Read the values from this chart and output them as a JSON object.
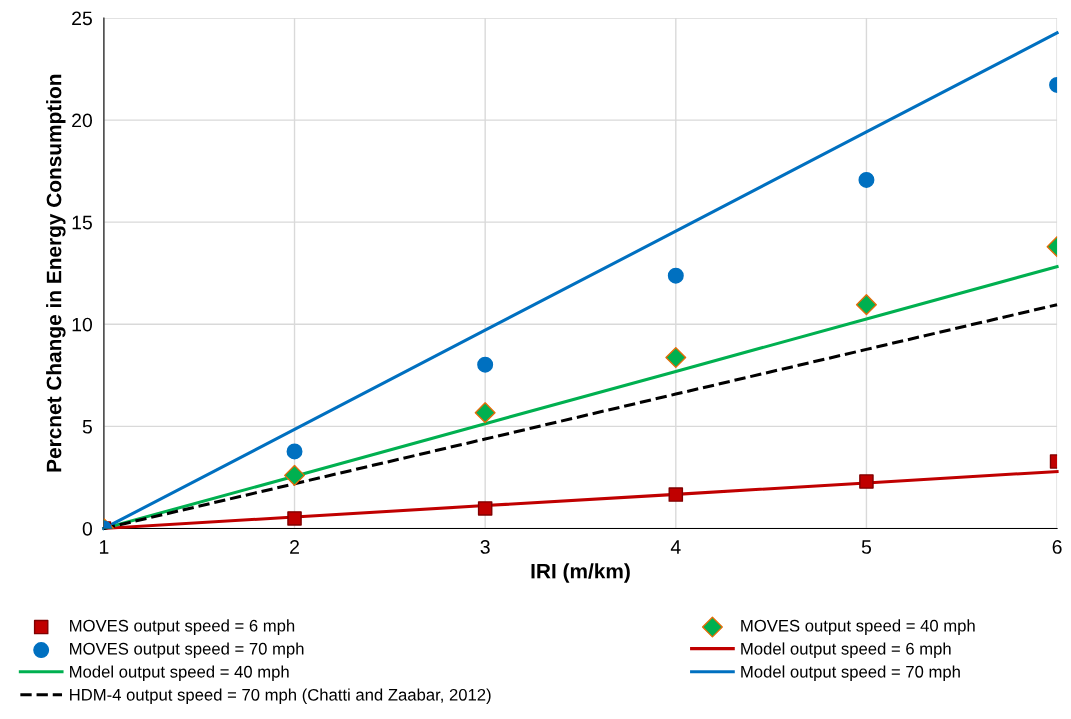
{
  "chart_data": {
    "type": "scatter",
    "xlabel": "IRI (m/km)",
    "ylabel": "Percnet Change in Energy Consumption",
    "x": [
      1,
      2,
      3,
      4,
      5,
      6
    ],
    "xlim": [
      1,
      6
    ],
    "xticks": [
      1,
      2,
      3,
      4,
      5,
      6
    ],
    "ylim": [
      0,
      25
    ],
    "yticks": [
      0,
      5,
      10,
      15,
      20,
      25
    ],
    "grid": true,
    "legend": "bottom",
    "series": [
      {
        "name": "MOVES output speed = 6 mph",
        "marker": "square",
        "color": "#c00000",
        "values": [
          0,
          0.49,
          0.98,
          1.66,
          2.3,
          3.28
        ]
      },
      {
        "name": "MOVES output speed = 40 mph",
        "marker": "diamond",
        "color": "#00b050",
        "values": [
          0,
          2.6,
          5.67,
          8.37,
          10.96,
          13.8
        ]
      },
      {
        "name": "MOVES output speed = 70 mph",
        "marker": "circle",
        "color": "#0070c0",
        "values": [
          0,
          3.77,
          8.02,
          12.38,
          17.07,
          21.72
        ]
      },
      {
        "name": "Model output speed = 6 mph",
        "type": "line",
        "color": "#c00000",
        "values": [
          0,
          0.56,
          1.12,
          1.67,
          2.23,
          2.79
        ],
        "line_style": "solid"
      },
      {
        "name": "Model output speed = 40 mph",
        "type": "line",
        "color": "#00b050",
        "values": [
          0,
          2.56,
          5.13,
          7.69,
          10.26,
          12.82
        ],
        "line_style": "solid"
      },
      {
        "name": "Model output speed = 70 mph",
        "type": "line",
        "color": "#0070c0",
        "values": [
          0,
          4.85,
          9.71,
          14.56,
          19.42,
          24.27
        ],
        "line_style": "solid"
      },
      {
        "name": "HDM-4 output speed = 70 mph (Chatti and Zaabar, 2012)",
        "type": "line",
        "color": "#000000",
        "values": [
          0,
          2.19,
          4.38,
          6.58,
          8.77,
          10.96
        ],
        "line_style": "dashed"
      }
    ]
  }
}
